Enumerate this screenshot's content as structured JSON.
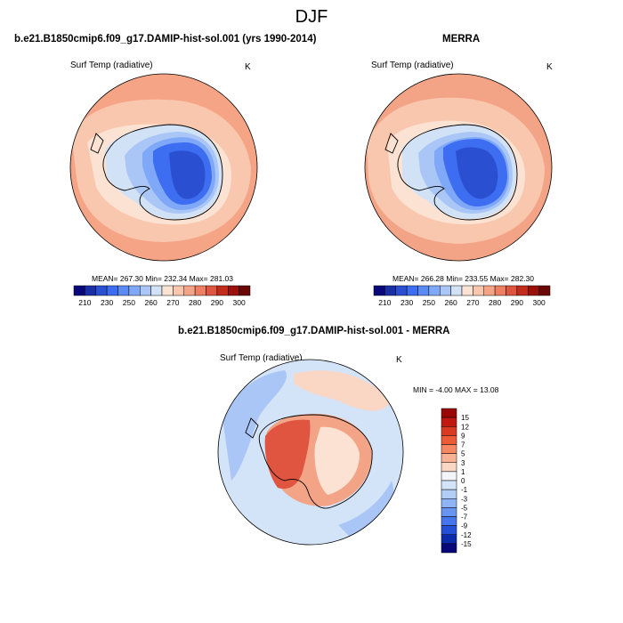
{
  "figure": {
    "title": "DJF",
    "panels": {
      "model": {
        "title": "b.e21.B1850cmip6.f09_g17.DAMIP-hist-sol.001 (yrs 1990-2014)",
        "variable": "Surf Temp (radiative)",
        "units": "K",
        "stats": "MEAN= 267.30  Min= 232.34  Max= 281.03"
      },
      "obs": {
        "title": "MERRA",
        "variable": "Surf Temp (radiative)",
        "units": "K",
        "stats": "MEAN= 266.28  Min= 233.55  Max= 282.30"
      },
      "diff": {
        "title": "b.e21.B1850cmip6.f09_g17.DAMIP-hist-sol.001 - MERRA",
        "variable": "Surf Temp (radiative)",
        "units": "K",
        "stats": "MIN = -4.00 MAX =  13.08"
      }
    },
    "colorbar_abs": {
      "colors": [
        "#08087a",
        "#1a2fa5",
        "#2a4fd0",
        "#3d6df0",
        "#5b8af5",
        "#7fa8f8",
        "#a9c6f7",
        "#d2e2f6",
        "#fbe3d3",
        "#f9c7ad",
        "#f4a486",
        "#ee7f62",
        "#e0553f",
        "#c22c1c",
        "#9a120b",
        "#6a0805"
      ],
      "labels": [
        "210",
        "230",
        "250",
        "260",
        "270",
        "280",
        "290",
        "300"
      ]
    },
    "colorbar_diff": {
      "colors": [
        "#9a0806",
        "#c01a10",
        "#d93a22",
        "#ec5a36",
        "#f58862",
        "#f8b294",
        "#fad6c5",
        "#f3f5fa",
        "#d4e4f8",
        "#b2cdf6",
        "#8fb3f5",
        "#6995f2",
        "#4676ee",
        "#2450d8",
        "#0c2aac",
        "#08087a"
      ],
      "labels": [
        "15",
        "12",
        "9",
        "7",
        "5",
        "3",
        "1",
        "0",
        "-1",
        "-3",
        "-5",
        "-7",
        "-9",
        "-12",
        "-15"
      ]
    },
    "map_colors": {
      "warm_ocean": "#f5a586",
      "mid_ocean": "#f9c6ae",
      "pale": "#fbe2d3",
      "ice_pale": "#d2e2f6",
      "ice_light": "#a9c6f7",
      "ice_mid": "#7fa8f8",
      "ice_deep": "#3d6df0",
      "ice_core": "#2a4fd0",
      "diff_red": "#e0553f",
      "diff_red_light": "#f4a486",
      "diff_blue": "#a9c6f7",
      "diff_blue_light": "#d4e4f8"
    }
  }
}
